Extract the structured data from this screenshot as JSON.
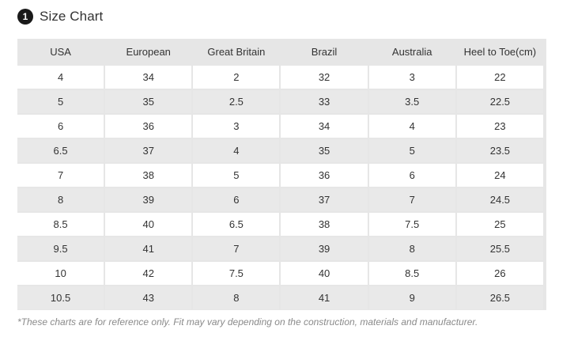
{
  "header": {
    "badge": "1",
    "title": "Size Chart"
  },
  "table": {
    "columns": [
      "USA",
      "European",
      "Great Britain",
      "Brazil",
      "Australia",
      "Heel to Toe(cm)"
    ],
    "rows": [
      [
        "4",
        "34",
        "2",
        "32",
        "3",
        "22"
      ],
      [
        "5",
        "35",
        "2.5",
        "33",
        "3.5",
        "22.5"
      ],
      [
        "6",
        "36",
        "3",
        "34",
        "4",
        "23"
      ],
      [
        "6.5",
        "37",
        "4",
        "35",
        "5",
        "23.5"
      ],
      [
        "7",
        "38",
        "5",
        "36",
        "6",
        "24"
      ],
      [
        "8",
        "39",
        "6",
        "37",
        "7",
        "24.5"
      ],
      [
        "8.5",
        "40",
        "6.5",
        "38",
        "7.5",
        "25"
      ],
      [
        "9.5",
        "41",
        "7",
        "39",
        "8",
        "25.5"
      ],
      [
        "10",
        "42",
        "7.5",
        "40",
        "8.5",
        "26"
      ],
      [
        "10.5",
        "43",
        "8",
        "41",
        "9",
        "26.5"
      ]
    ]
  },
  "footnote": "*These charts are for reference only. Fit may vary depending on the construction, materials and manufacturer."
}
